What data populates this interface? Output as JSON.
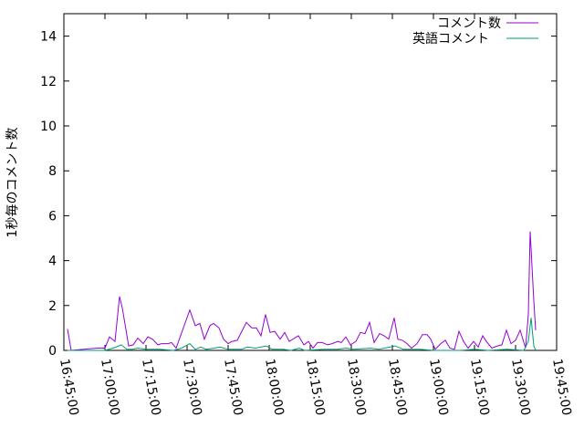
{
  "chart_data": {
    "type": "line",
    "title": "",
    "xlabel": "",
    "ylabel": "1秒毎のコメント数",
    "xlim": [
      "16:45:00",
      "19:45:00"
    ],
    "ylim": [
      0,
      15
    ],
    "xticks": [
      "16:45:00",
      "17:00:00",
      "17:15:00",
      "17:30:00",
      "17:45:00",
      "18:00:00",
      "18:15:00",
      "18:30:00",
      "18:45:00",
      "19:00:00",
      "19:15:00",
      "19:30:00",
      "19:45:00"
    ],
    "yticks": [
      0,
      2,
      4,
      6,
      8,
      10,
      12,
      14
    ],
    "grid": false,
    "legend_position": "top-right",
    "series": [
      {
        "name": "コメント数",
        "color": "#9400d3",
        "points": [
          [
            "16:46:20",
            0.95
          ],
          [
            "16:47:40",
            0
          ],
          [
            "16:52:20",
            0.05
          ],
          [
            "16:57:20",
            0.1
          ],
          [
            "17:00:00",
            0.1
          ],
          [
            "17:01:40",
            0.6
          ],
          [
            "17:03:40",
            0.4
          ],
          [
            "17:05:20",
            2.4
          ],
          [
            "17:06:20",
            1.9
          ],
          [
            "17:08:40",
            0.2
          ],
          [
            "17:10:20",
            0.25
          ],
          [
            "17:12:00",
            0.55
          ],
          [
            "17:14:00",
            0.3
          ],
          [
            "17:15:40",
            0.6
          ],
          [
            "17:17:20",
            0.5
          ],
          [
            "17:19:20",
            0.25
          ],
          [
            "17:20:40",
            0.3
          ],
          [
            "17:23:00",
            0.3
          ],
          [
            "17:24:20",
            0.35
          ],
          [
            "17:26:00",
            0.1
          ],
          [
            "17:31:00",
            1.8
          ],
          [
            "17:33:00",
            1.1
          ],
          [
            "17:34:40",
            1.2
          ],
          [
            "17:36:20",
            0.5
          ],
          [
            "17:38:20",
            1.1
          ],
          [
            "17:39:40",
            1.2
          ],
          [
            "17:41:40",
            1.0
          ],
          [
            "17:43:20",
            0.5
          ],
          [
            "17:45:00",
            0.3
          ],
          [
            "17:46:20",
            0.4
          ],
          [
            "17:48:20",
            0.45
          ],
          [
            "17:51:40",
            1.25
          ],
          [
            "17:53:40",
            1.0
          ],
          [
            "17:55:20",
            1.0
          ],
          [
            "17:57:00",
            0.65
          ],
          [
            "17:58:40",
            1.6
          ],
          [
            "18:00:20",
            0.8
          ],
          [
            "18:02:00",
            0.85
          ],
          [
            "18:04:00",
            0.5
          ],
          [
            "18:05:40",
            0.8
          ],
          [
            "18:07:20",
            0.4
          ],
          [
            "18:10:40",
            0.65
          ],
          [
            "18:11:40",
            0.45
          ],
          [
            "18:12:40",
            0.25
          ],
          [
            "18:14:20",
            0.4
          ],
          [
            "18:16:00",
            0.1
          ],
          [
            "18:17:40",
            0.35
          ],
          [
            "18:19:20",
            0.35
          ],
          [
            "18:21:20",
            0.25
          ],
          [
            "18:23:00",
            0.3
          ],
          [
            "18:25:00",
            0.4
          ],
          [
            "18:26:20",
            0.35
          ],
          [
            "18:28:00",
            0.6
          ],
          [
            "18:29:40",
            0.25
          ],
          [
            "18:31:40",
            0.4
          ],
          [
            "18:33:20",
            0.8
          ],
          [
            "18:35:00",
            0.75
          ],
          [
            "18:36:40",
            1.25
          ],
          [
            "18:38:20",
            0.35
          ],
          [
            "18:40:20",
            0.75
          ],
          [
            "18:42:00",
            0.65
          ],
          [
            "18:43:40",
            0.5
          ],
          [
            "18:45:40",
            1.45
          ],
          [
            "18:47:00",
            0.5
          ],
          [
            "18:48:40",
            0.45
          ],
          [
            "18:50:20",
            0.3
          ],
          [
            "18:52:00",
            0.1
          ],
          [
            "18:54:00",
            0.3
          ],
          [
            "18:56:00",
            0.7
          ],
          [
            "18:57:40",
            0.7
          ],
          [
            "18:59:00",
            0.5
          ],
          [
            "19:00:40",
            0.05
          ],
          [
            "19:02:40",
            0.3
          ],
          [
            "19:04:20",
            0.45
          ],
          [
            "19:06:00",
            0.1
          ],
          [
            "19:07:40",
            0.05
          ],
          [
            "19:09:20",
            0.85
          ],
          [
            "19:11:00",
            0.4
          ],
          [
            "19:12:40",
            0.1
          ],
          [
            "19:14:40",
            0.4
          ],
          [
            "19:16:20",
            0.15
          ],
          [
            "19:18:00",
            0.65
          ],
          [
            "19:19:20",
            0.4
          ],
          [
            "19:21:20",
            0.1
          ],
          [
            "19:23:20",
            0.2
          ],
          [
            "19:25:00",
            0.25
          ],
          [
            "19:26:40",
            0.9
          ],
          [
            "19:28:20",
            0.3
          ],
          [
            "19:30:00",
            0.45
          ],
          [
            "19:31:40",
            0.9
          ],
          [
            "19:33:40",
            0.1
          ],
          [
            "19:34:40",
            1.6
          ],
          [
            "19:35:20",
            5.3
          ],
          [
            "19:36:40",
            2.2
          ],
          [
            "19:37:20",
            0.9
          ]
        ]
      },
      {
        "name": "英語コメント",
        "color": "#009e73",
        "points": [
          [
            "16:46:20",
            0
          ],
          [
            "17:00:00",
            0
          ],
          [
            "17:03:00",
            0.1
          ],
          [
            "17:05:00",
            0.2
          ],
          [
            "17:06:00",
            0.25
          ],
          [
            "17:08:00",
            0.05
          ],
          [
            "17:10:00",
            0.05
          ],
          [
            "17:12:00",
            0.1
          ],
          [
            "17:15:00",
            0.05
          ],
          [
            "17:20:00",
            0.05
          ],
          [
            "17:25:00",
            0
          ],
          [
            "17:28:00",
            0.1
          ],
          [
            "17:31:00",
            0.3
          ],
          [
            "17:33:00",
            0.05
          ],
          [
            "17:35:00",
            0.15
          ],
          [
            "17:37:00",
            0.05
          ],
          [
            "17:40:00",
            0.1
          ],
          [
            "17:42:00",
            0.15
          ],
          [
            "17:45:00",
            0.05
          ],
          [
            "17:50:00",
            0.05
          ],
          [
            "17:52:00",
            0.15
          ],
          [
            "17:55:00",
            0.1
          ],
          [
            "17:59:00",
            0.2
          ],
          [
            "18:01:00",
            0.05
          ],
          [
            "18:05:00",
            0.05
          ],
          [
            "18:08:00",
            0
          ],
          [
            "18:11:00",
            0.1
          ],
          [
            "18:13:00",
            0
          ],
          [
            "18:20:00",
            0.05
          ],
          [
            "18:25:00",
            0.05
          ],
          [
            "18:28:00",
            0.1
          ],
          [
            "18:31:00",
            0.05
          ],
          [
            "18:37:00",
            0.1
          ],
          [
            "18:40:00",
            0.05
          ],
          [
            "18:46:00",
            0.2
          ],
          [
            "18:49:00",
            0.05
          ],
          [
            "18:55:00",
            0.05
          ],
          [
            "19:00:00",
            0
          ],
          [
            "19:10:00",
            0
          ],
          [
            "19:15:00",
            0.05
          ],
          [
            "19:20:00",
            0
          ],
          [
            "19:27:00",
            0.05
          ],
          [
            "19:33:00",
            0
          ],
          [
            "19:34:40",
            0.4
          ],
          [
            "19:35:40",
            1.45
          ],
          [
            "19:36:40",
            0.2
          ],
          [
            "19:37:20",
            0
          ]
        ]
      }
    ]
  }
}
